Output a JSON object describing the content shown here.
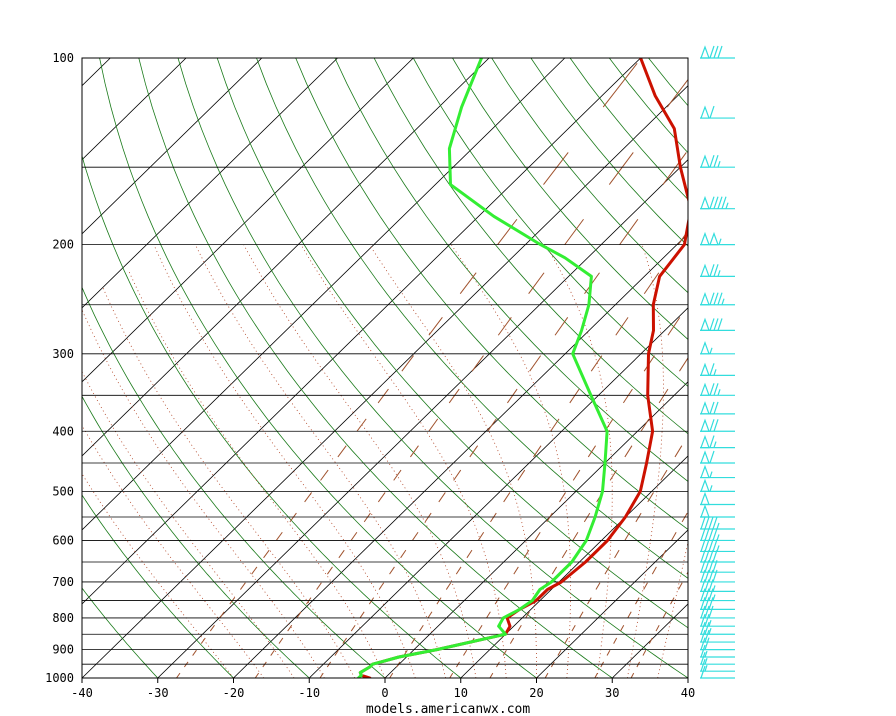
{
  "chart_data": {
    "type": "line",
    "title": "",
    "xlabel": "",
    "ylabel": "",
    "credit": "models.americanwx.com",
    "x_ticks": [
      -40,
      -30,
      -20,
      -10,
      0,
      10,
      20,
      30,
      40
    ],
    "y_tick_labels": [
      100,
      200,
      300,
      400,
      500,
      600,
      700,
      800,
      900,
      1000
    ],
    "pressure_lines": [
      100,
      150,
      200,
      250,
      300,
      350,
      400,
      450,
      500,
      550,
      600,
      650,
      700,
      750,
      800,
      850,
      900,
      950,
      1000
    ],
    "xlim": [
      -40,
      40
    ],
    "ylim": [
      1000,
      100
    ],
    "y_scale": "log-pressure",
    "grid": true,
    "colors": {
      "temperature": "#cc1100",
      "dewpoint": "#33ee33",
      "isotherm": "#000000",
      "dry_adiabat": "#1a7a1a",
      "moist_adiabat": "#b04020",
      "mixing_ratio": "#a0522d",
      "wind_barb": "#33dddd"
    },
    "series": [
      {
        "key": "temperature",
        "points": [
          [
            1000,
            -2
          ],
          [
            990,
            -3.5
          ],
          [
            980,
            -4
          ],
          [
            960,
            -3.5
          ],
          [
            950,
            -3.5
          ],
          [
            925,
            -1
          ],
          [
            900,
            3
          ],
          [
            850,
            10
          ],
          [
            825,
            9.5
          ],
          [
            800,
            8
          ],
          [
            775,
            8.5
          ],
          [
            750,
            9.5
          ],
          [
            720,
            9.5
          ],
          [
            700,
            10.3
          ],
          [
            650,
            10.8
          ],
          [
            600,
            10.8
          ],
          [
            550,
            10
          ],
          [
            500,
            8.5
          ],
          [
            450,
            5.5
          ],
          [
            400,
            2
          ],
          [
            350,
            -3.5
          ],
          [
            300,
            -9
          ],
          [
            275,
            -11.5
          ],
          [
            250,
            -15
          ],
          [
            225,
            -18
          ],
          [
            200,
            -19
          ],
          [
            175,
            -23
          ],
          [
            150,
            -30
          ],
          [
            130,
            -36
          ],
          [
            115,
            -43
          ],
          [
            100,
            -50
          ]
        ]
      },
      {
        "key": "dewpoint",
        "points": [
          [
            1000,
            -3.5
          ],
          [
            990,
            -3.5
          ],
          [
            980,
            -4
          ],
          [
            960,
            -3.5
          ],
          [
            950,
            -3.5
          ],
          [
            925,
            -1
          ],
          [
            900,
            3
          ],
          [
            850,
            10
          ],
          [
            825,
            8
          ],
          [
            800,
            7.5
          ],
          [
            775,
            8.5
          ],
          [
            750,
            9
          ],
          [
            720,
            8.5
          ],
          [
            700,
            9
          ],
          [
            650,
            9
          ],
          [
            600,
            8
          ],
          [
            550,
            6
          ],
          [
            500,
            3.5
          ],
          [
            450,
            0
          ],
          [
            400,
            -4
          ],
          [
            350,
            -11
          ],
          [
            300,
            -19
          ],
          [
            275,
            -21
          ],
          [
            250,
            -23.5
          ],
          [
            225,
            -27
          ],
          [
            210,
            -33
          ],
          [
            200,
            -38
          ],
          [
            180,
            -48
          ],
          [
            160,
            -58
          ],
          [
            140,
            -63
          ],
          [
            120,
            -67
          ],
          [
            100,
            -71
          ]
        ]
      }
    ],
    "wind_barbs": [
      {
        "p": 100,
        "knots": 80
      },
      {
        "p": 125,
        "knots": 60
      },
      {
        "p": 150,
        "knots": 75
      },
      {
        "p": 175,
        "knots": 95
      },
      {
        "p": 200,
        "knots": 105
      },
      {
        "p": 225,
        "knots": 75
      },
      {
        "p": 250,
        "knots": 85
      },
      {
        "p": 275,
        "knots": 80
      },
      {
        "p": 300,
        "knots": 55
      },
      {
        "p": 325,
        "knots": 65
      },
      {
        "p": 350,
        "knots": 75
      },
      {
        "p": 375,
        "knots": 70
      },
      {
        "p": 400,
        "knots": 70
      },
      {
        "p": 425,
        "knots": 65
      },
      {
        "p": 450,
        "knots": 60
      },
      {
        "p": 475,
        "knots": 55
      },
      {
        "p": 500,
        "knots": 55
      },
      {
        "p": 525,
        "knots": 50
      },
      {
        "p": 550,
        "knots": 50
      },
      {
        "p": 575,
        "knots": 45
      },
      {
        "p": 600,
        "knots": 45
      },
      {
        "p": 625,
        "knots": 45
      },
      {
        "p": 650,
        "knots": 40
      },
      {
        "p": 675,
        "knots": 40
      },
      {
        "p": 700,
        "knots": 40
      },
      {
        "p": 725,
        "knots": 35
      },
      {
        "p": 750,
        "knots": 35
      },
      {
        "p": 775,
        "knots": 30
      },
      {
        "p": 800,
        "knots": 30
      },
      {
        "p": 825,
        "knots": 25
      },
      {
        "p": 850,
        "knots": 25
      },
      {
        "p": 875,
        "knots": 20
      },
      {
        "p": 900,
        "knots": 20
      },
      {
        "p": 925,
        "knots": 15
      },
      {
        "p": 950,
        "knots": 15
      },
      {
        "p": 975,
        "knots": 15
      },
      {
        "p": 1000,
        "knots": 10
      }
    ]
  }
}
